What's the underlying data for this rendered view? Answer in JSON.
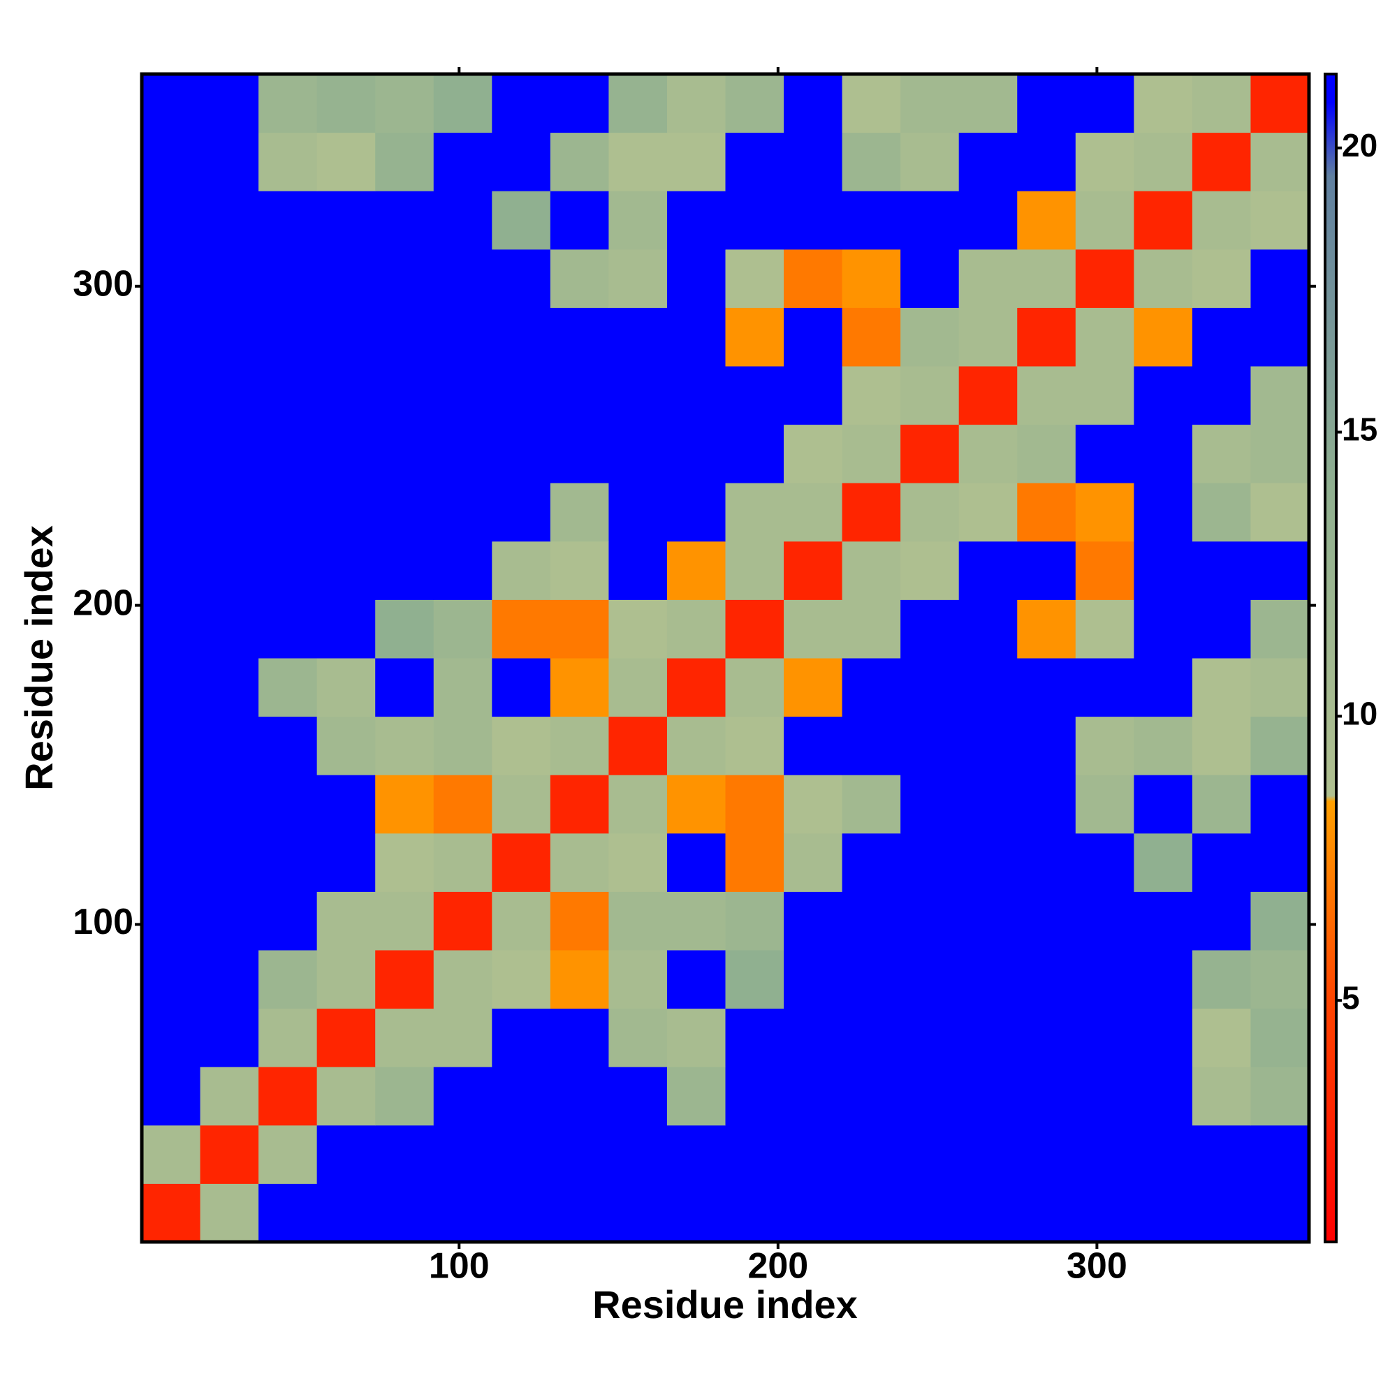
{
  "chart_data": {
    "type": "heatmap",
    "x_label": "Residue index",
    "y_label": "Residue index",
    "bins": [
      0.5,
      18.8,
      37.1,
      55.4,
      73.7,
      92,
      110.3,
      128.6,
      146.9,
      165.2,
      183.5,
      201.8,
      220.1,
      238.4,
      256.7,
      275,
      293.3,
      311.6,
      329.9,
      348.2,
      366.5
    ],
    "values": [
      [
        3,
        10,
        21,
        21,
        21,
        21,
        21,
        21,
        21,
        21,
        21,
        21,
        21,
        21,
        21,
        21,
        21,
        21,
        21,
        21
      ],
      [
        10,
        3,
        10,
        21,
        21,
        21,
        21,
        21,
        21,
        21,
        21,
        21,
        21,
        21,
        21,
        21,
        21,
        21,
        21,
        21
      ],
      [
        21,
        10,
        3,
        10,
        12,
        21,
        21,
        21,
        21,
        12,
        21,
        21,
        21,
        21,
        21,
        21,
        21,
        21,
        10,
        12
      ],
      [
        21,
        21,
        10,
        3,
        10,
        10,
        21,
        21,
        11,
        10,
        21,
        21,
        21,
        21,
        21,
        21,
        21,
        21,
        9,
        13
      ],
      [
        21,
        21,
        12,
        10,
        3,
        10,
        9,
        8,
        10,
        21,
        14,
        21,
        21,
        21,
        21,
        21,
        21,
        21,
        13,
        12
      ],
      [
        21,
        21,
        21,
        10,
        10,
        3,
        10,
        7,
        11,
        11,
        12,
        21,
        21,
        21,
        21,
        21,
        21,
        21,
        21,
        14
      ],
      [
        21,
        21,
        21,
        21,
        9,
        10,
        3,
        10,
        9,
        21,
        7,
        10,
        21,
        21,
        21,
        21,
        21,
        14,
        21,
        21
      ],
      [
        21,
        21,
        21,
        21,
        8,
        7,
        10,
        3,
        10,
        8,
        7,
        9,
        11,
        21,
        21,
        21,
        11,
        21,
        12,
        21
      ],
      [
        21,
        21,
        21,
        11,
        10,
        11,
        9,
        10,
        3,
        10,
        9,
        21,
        21,
        21,
        21,
        21,
        10,
        11,
        9,
        13
      ],
      [
        21,
        21,
        12,
        10,
        21,
        11,
        21,
        8,
        10,
        3,
        10,
        8,
        21,
        21,
        21,
        21,
        21,
        21,
        9,
        10
      ],
      [
        21,
        21,
        21,
        21,
        14,
        12,
        7,
        7,
        9,
        10,
        3,
        10,
        10,
        21,
        21,
        8,
        9,
        21,
        21,
        12
      ],
      [
        21,
        21,
        21,
        21,
        21,
        21,
        10,
        9,
        21,
        8,
        10,
        3,
        10,
        9,
        21,
        21,
        7,
        21,
        21,
        21
      ],
      [
        21,
        21,
        21,
        21,
        21,
        21,
        21,
        11,
        21,
        21,
        10,
        10,
        3,
        10,
        9,
        7,
        8,
        21,
        12,
        9
      ],
      [
        21,
        21,
        21,
        21,
        21,
        21,
        21,
        21,
        21,
        21,
        21,
        9,
        10,
        3,
        10,
        11,
        21,
        21,
        10,
        11
      ],
      [
        21,
        21,
        21,
        21,
        21,
        21,
        21,
        21,
        21,
        21,
        21,
        21,
        9,
        10,
        3,
        10,
        10,
        21,
        21,
        11
      ],
      [
        21,
        21,
        21,
        21,
        21,
        21,
        21,
        21,
        21,
        21,
        8,
        21,
        7,
        11,
        10,
        3,
        10,
        8,
        21,
        21
      ],
      [
        21,
        21,
        21,
        21,
        21,
        21,
        21,
        11,
        10,
        21,
        9,
        7,
        8,
        21,
        10,
        10,
        3,
        10,
        9,
        21
      ],
      [
        21,
        21,
        21,
        21,
        21,
        21,
        14,
        21,
        11,
        21,
        21,
        21,
        21,
        21,
        21,
        8,
        10,
        3,
        10,
        9
      ],
      [
        21,
        21,
        10,
        9,
        13,
        21,
        21,
        12,
        9,
        9,
        21,
        21,
        12,
        10,
        21,
        21,
        9,
        10,
        3,
        10
      ],
      [
        21,
        21,
        12,
        13,
        12,
        14,
        21,
        21,
        13,
        10,
        12,
        21,
        9,
        11,
        11,
        21,
        21,
        9,
        10,
        3
      ]
    ],
    "xlim": [
      0.5,
      366.5
    ],
    "ylim": [
      0.5,
      366.5
    ],
    "xticks": [
      100,
      200,
      300
    ],
    "yticks": [
      100,
      200,
      300
    ],
    "clim": [
      0.75,
      21.3
    ],
    "cticks": [
      5,
      10,
      15,
      20
    ],
    "colorscale": [
      [
        0.75,
        "#ff0000"
      ],
      [
        5,
        "#ff4500"
      ],
      [
        8.5,
        "#ffa000"
      ],
      [
        8.6,
        "#b0c090"
      ],
      [
        14,
        "#90b090"
      ],
      [
        19.5,
        "#6080a0"
      ],
      [
        20.8,
        "#0000ff"
      ],
      [
        21.3,
        "#0000ff"
      ]
    ]
  }
}
